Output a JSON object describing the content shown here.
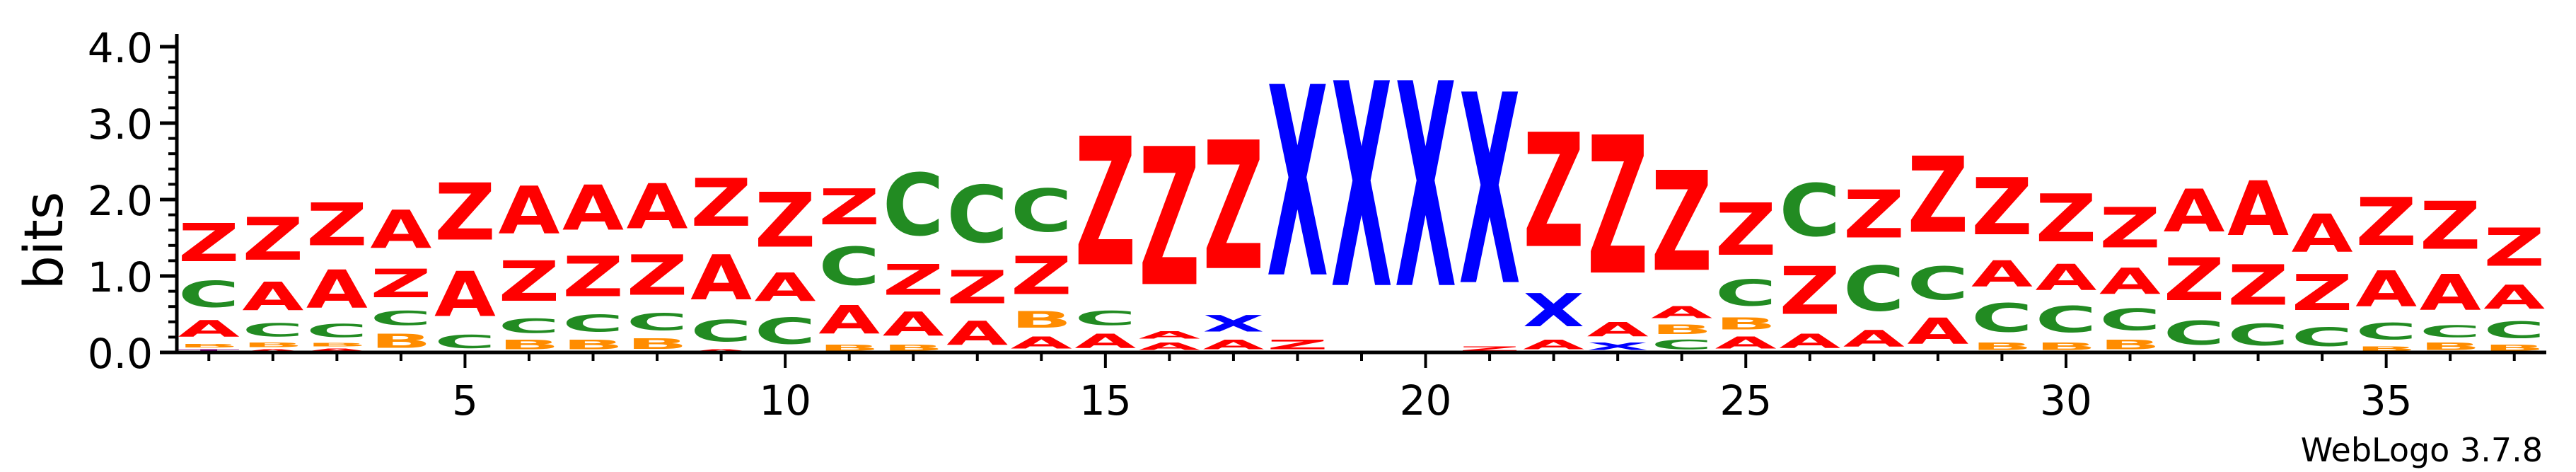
{
  "chart_data": {
    "type": "sequence-logo",
    "ylabel": "bits",
    "ylim": [
      0,
      4
    ],
    "y_ticks": [
      "0.0",
      "1.0",
      "2.0",
      "3.0",
      "4.0"
    ],
    "x_ticks": [
      5,
      10,
      15,
      20,
      25,
      30,
      35
    ],
    "num_positions": 37,
    "footer": "WebLogo 3.7.8",
    "colors": {
      "Z": "#ff0000",
      "A": "#ff0000",
      "C": "#228b22",
      "B": "#ff8c00",
      "X": "#0000ff",
      "T": "#800080"
    },
    "positions": [
      {
        "pos": 1,
        "stack": [
          [
            "T",
            0.05
          ],
          [
            "B",
            0.08
          ],
          [
            "A",
            0.35
          ],
          [
            "C",
            0.55
          ],
          [
            "Z",
            0.8
          ]
        ]
      },
      {
        "pos": 2,
        "stack": [
          [
            "A",
            0.05
          ],
          [
            "B",
            0.1
          ],
          [
            "C",
            0.28
          ],
          [
            "A",
            0.6
          ],
          [
            "Z",
            0.9
          ]
        ]
      },
      {
        "pos": 3,
        "stack": [
          [
            "A",
            0.06
          ],
          [
            "B",
            0.08
          ],
          [
            "C",
            0.28
          ],
          [
            "A",
            0.8
          ],
          [
            "Z",
            0.9
          ]
        ]
      },
      {
        "pos": 4,
        "stack": [
          [
            "B",
            0.3
          ],
          [
            "C",
            0.3
          ],
          [
            "Z",
            0.6
          ],
          [
            "A",
            0.8
          ]
        ]
      },
      {
        "pos": 5,
        "stack": [
          [
            "C",
            0.28
          ],
          [
            "A",
            0.95
          ],
          [
            "Z",
            1.2
          ]
        ]
      },
      {
        "pos": 6,
        "stack": [
          [
            "B",
            0.2
          ],
          [
            "C",
            0.3
          ],
          [
            "Z",
            0.85
          ],
          [
            "A",
            1.0
          ]
        ]
      },
      {
        "pos": 7,
        "stack": [
          [
            "B",
            0.2
          ],
          [
            "C",
            0.36
          ],
          [
            "Z",
            0.85
          ],
          [
            "A",
            0.95
          ]
        ]
      },
      {
        "pos": 8,
        "stack": [
          [
            "B",
            0.22
          ],
          [
            "C",
            0.36
          ],
          [
            "Z",
            0.85
          ],
          [
            "A",
            0.95
          ]
        ]
      },
      {
        "pos": 9,
        "stack": [
          [
            "A",
            0.05
          ],
          [
            "C",
            0.45
          ],
          [
            "A",
            0.95
          ],
          [
            "Z",
            1.0
          ]
        ]
      },
      {
        "pos": 10,
        "stack": [
          [
            "C",
            0.55
          ],
          [
            "A",
            0.6
          ],
          [
            "Z",
            1.15
          ]
        ]
      },
      {
        "pos": 11,
        "stack": [
          [
            "B",
            0.12
          ],
          [
            "A",
            0.6
          ],
          [
            "C",
            0.8
          ],
          [
            "Z",
            0.75
          ]
        ]
      },
      {
        "pos": 12,
        "stack": [
          [
            "B",
            0.12
          ],
          [
            "A",
            0.5
          ],
          [
            "Z",
            0.65
          ],
          [
            "C",
            1.3
          ]
        ]
      },
      {
        "pos": 13,
        "stack": [
          [
            "A",
            0.5
          ],
          [
            "Z",
            0.7
          ],
          [
            "C",
            1.2
          ]
        ]
      },
      {
        "pos": 14,
        "stack": [
          [
            "A",
            0.25
          ],
          [
            "B",
            0.35
          ],
          [
            "Z",
            0.8
          ],
          [
            "C",
            0.9
          ]
        ]
      },
      {
        "pos": 15,
        "stack": [
          [
            "A",
            0.3
          ],
          [
            "C",
            0.3
          ],
          [
            "Z",
            2.7
          ]
        ]
      },
      {
        "pos": 16,
        "stack": [
          [
            "A",
            0.15
          ],
          [
            "A",
            0.15
          ],
          [
            "Z",
            2.9
          ]
        ]
      },
      {
        "pos": 17,
        "stack": [
          [
            "A",
            0.2
          ],
          [
            "X",
            0.35
          ],
          [
            "Z",
            2.7
          ]
        ]
      },
      {
        "pos": 18,
        "stack": [
          [
            "Z",
            0.2
          ],
          [
            "X",
            4.0
          ]
        ]
      },
      {
        "pos": 19,
        "stack": [
          [
            "X",
            4.3
          ]
        ]
      },
      {
        "pos": 20,
        "stack": [
          [
            "X",
            4.3
          ]
        ]
      },
      {
        "pos": 21,
        "stack": [
          [
            "Z",
            0.1
          ],
          [
            "X",
            4.0
          ]
        ]
      },
      {
        "pos": 22,
        "stack": [
          [
            "A",
            0.2
          ],
          [
            "X",
            0.7
          ],
          [
            "Z",
            2.4
          ]
        ]
      },
      {
        "pos": 23,
        "stack": [
          [
            "X",
            0.15
          ],
          [
            "A",
            0.3
          ],
          [
            "Z",
            2.9
          ]
        ]
      },
      {
        "pos": 24,
        "stack": [
          [
            "C",
            0.2
          ],
          [
            "B",
            0.2
          ],
          [
            "A",
            0.25
          ],
          [
            "Z",
            2.1
          ]
        ]
      },
      {
        "pos": 25,
        "stack": [
          [
            "A",
            0.25
          ],
          [
            "B",
            0.25
          ],
          [
            "C",
            0.55
          ],
          [
            "Z",
            1.1
          ]
        ]
      },
      {
        "pos": 26,
        "stack": [
          [
            "A",
            0.3
          ],
          [
            "Z",
            1.0
          ],
          [
            "C",
            1.1
          ]
        ]
      },
      {
        "pos": 27,
        "stack": [
          [
            "A",
            0.35
          ],
          [
            "C",
            0.95
          ],
          [
            "Z",
            1.0
          ]
        ]
      },
      {
        "pos": 28,
        "stack": [
          [
            "A",
            0.55
          ],
          [
            "C",
            0.7
          ],
          [
            "Z",
            1.6
          ]
        ]
      },
      {
        "pos": 29,
        "stack": [
          [
            "B",
            0.15
          ],
          [
            "C",
            0.6
          ],
          [
            "A",
            0.55
          ],
          [
            "Z",
            1.2
          ]
        ]
      },
      {
        "pos": 30,
        "stack": [
          [
            "B",
            0.15
          ],
          [
            "C",
            0.55
          ],
          [
            "A",
            0.55
          ],
          [
            "Z",
            1.0
          ]
        ]
      },
      {
        "pos": 31,
        "stack": [
          [
            "B",
            0.2
          ],
          [
            "C",
            0.45
          ],
          [
            "A",
            0.55
          ],
          [
            "Z",
            0.85
          ]
        ]
      },
      {
        "pos": 32,
        "stack": [
          [
            "C",
            0.5
          ],
          [
            "Z",
            0.9
          ],
          [
            "A",
            0.9
          ]
        ]
      },
      {
        "pos": 33,
        "stack": [
          [
            "C",
            0.45
          ],
          [
            "Z",
            0.85
          ],
          [
            "A",
            1.15
          ]
        ]
      },
      {
        "pos": 34,
        "stack": [
          [
            "C",
            0.4
          ],
          [
            "Z",
            0.75
          ],
          [
            "A",
            0.8
          ]
        ]
      },
      {
        "pos": 35,
        "stack": [
          [
            "B",
            0.1
          ],
          [
            "C",
            0.35
          ],
          [
            "A",
            0.75
          ],
          [
            "Z",
            1.0
          ]
        ]
      },
      {
        "pos": 36,
        "stack": [
          [
            "B",
            0.15
          ],
          [
            "C",
            0.25
          ],
          [
            "A",
            0.75
          ],
          [
            "Z",
            1.0
          ]
        ]
      },
      {
        "pos": 37,
        "stack": [
          [
            "B",
            0.12
          ],
          [
            "C",
            0.35
          ],
          [
            "A",
            0.5
          ],
          [
            "Z",
            0.8
          ]
        ]
      }
    ]
  }
}
